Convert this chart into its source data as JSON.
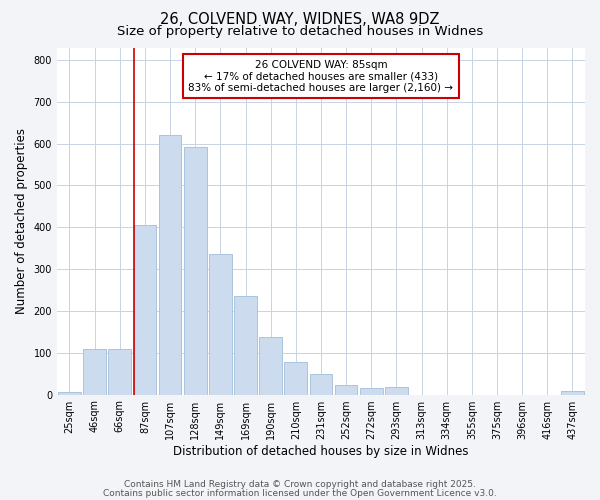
{
  "title_line1": "26, COLVEND WAY, WIDNES, WA8 9DZ",
  "title_line2": "Size of property relative to detached houses in Widnes",
  "xlabel": "Distribution of detached houses by size in Widnes",
  "ylabel": "Number of detached properties",
  "bar_labels": [
    "25sqm",
    "46sqm",
    "66sqm",
    "87sqm",
    "107sqm",
    "128sqm",
    "149sqm",
    "169sqm",
    "190sqm",
    "210sqm",
    "231sqm",
    "252sqm",
    "272sqm",
    "293sqm",
    "313sqm",
    "334sqm",
    "355sqm",
    "375sqm",
    "396sqm",
    "416sqm",
    "437sqm"
  ],
  "bar_values": [
    7,
    108,
    108,
    405,
    620,
    593,
    337,
    235,
    138,
    79,
    50,
    24,
    15,
    17,
    0,
    0,
    0,
    0,
    0,
    0,
    8
  ],
  "bar_color": "#ccdcee",
  "bar_edge_color": "#aac4de",
  "vline_x_index": 3,
  "vline_color": "#cc0000",
  "annotation_text": "26 COLVEND WAY: 85sqm\n← 17% of detached houses are smaller (433)\n83% of semi-detached houses are larger (2,160) →",
  "annotation_box_color": "#ffffff",
  "annotation_box_edge": "#cc0000",
  "ylim": [
    0,
    830
  ],
  "yticks": [
    0,
    100,
    200,
    300,
    400,
    500,
    600,
    700,
    800
  ],
  "footnote1": "Contains HM Land Registry data © Crown copyright and database right 2025.",
  "footnote2": "Contains public sector information licensed under the Open Government Licence v3.0.",
  "bg_color": "#f2f4f8",
  "plot_bg_color": "#ffffff",
  "grid_color": "#c8d4e4",
  "title_fontsize": 10.5,
  "subtitle_fontsize": 9.5,
  "axis_label_fontsize": 8.5,
  "tick_fontsize": 7,
  "annotation_fontsize": 7.5,
  "footnote_fontsize": 6.5
}
